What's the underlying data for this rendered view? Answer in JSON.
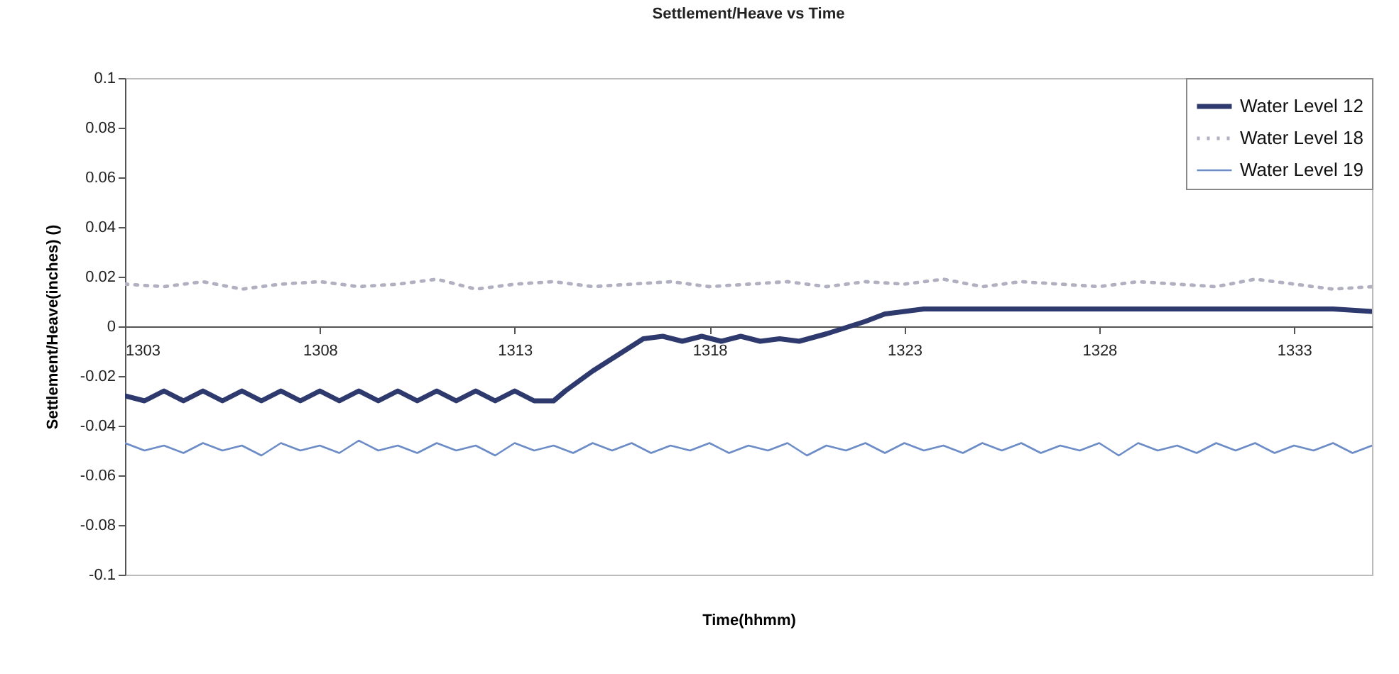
{
  "chart_data": {
    "type": "line",
    "title": "Settlement/Heave vs Time",
    "xlabel": "Time(hhmm)",
    "ylabel": "Settlement/Heave(inches)      ()",
    "xlim": [
      1303,
      1335
    ],
    "xticks": [
      1303,
      1308,
      1313,
      1318,
      1323,
      1328,
      1333
    ],
    "ylim": [
      -0.1,
      0.1
    ],
    "yticks": [
      -0.1,
      -0.08,
      -0.06,
      -0.04,
      -0.02,
      0,
      0.02,
      0.04,
      0.06,
      0.08,
      0.1
    ],
    "grid": false,
    "legend": "top right",
    "marker": "none",
    "series": [
      {
        "name": "Water Level 12",
        "color": "#2e3a6e",
        "line_style": "solid",
        "x": [
          1303,
          1303.5,
          1304,
          1304.5,
          1305,
          1305.5,
          1306,
          1306.5,
          1307,
          1307.5,
          1308,
          1308.5,
          1309,
          1309.5,
          1310,
          1310.5,
          1311,
          1311.5,
          1312,
          1312.5,
          1313,
          1313.5,
          1314,
          1314.3,
          1315,
          1315.6,
          1316.3,
          1316.8,
          1317.3,
          1317.8,
          1318.3,
          1318.8,
          1319.3,
          1319.8,
          1320.3,
          1321,
          1322,
          1322.5,
          1323,
          1323.5,
          1325,
          1328,
          1331,
          1334,
          1335
        ],
        "values": [
          -0.028,
          -0.03,
          -0.026,
          -0.03,
          -0.026,
          -0.03,
          -0.026,
          -0.03,
          -0.026,
          -0.03,
          -0.026,
          -0.03,
          -0.026,
          -0.03,
          -0.026,
          -0.03,
          -0.026,
          -0.03,
          -0.026,
          -0.03,
          -0.026,
          -0.03,
          -0.03,
          -0.026,
          -0.018,
          -0.012,
          -0.005,
          -0.004,
          -0.006,
          -0.004,
          -0.006,
          -0.004,
          -0.006,
          -0.005,
          -0.006,
          -0.003,
          0.002,
          0.005,
          0.006,
          0.007,
          0.007,
          0.007,
          0.007,
          0.007,
          0.006
        ]
      },
      {
        "name": "Water Level 18",
        "color": "#b0b0c0",
        "line_style": "dotted",
        "x": [
          1303,
          1304,
          1305,
          1306,
          1307,
          1308,
          1309,
          1310,
          1311,
          1312,
          1313,
          1314,
          1315,
          1316,
          1317,
          1318,
          1319,
          1320,
          1321,
          1322,
          1323,
          1324,
          1325,
          1326,
          1327,
          1328,
          1329,
          1330,
          1331,
          1332,
          1333,
          1334,
          1335
        ],
        "values": [
          0.017,
          0.016,
          0.018,
          0.015,
          0.017,
          0.018,
          0.016,
          0.017,
          0.019,
          0.015,
          0.017,
          0.018,
          0.016,
          0.017,
          0.018,
          0.016,
          0.017,
          0.018,
          0.016,
          0.018,
          0.017,
          0.019,
          0.016,
          0.018,
          0.017,
          0.016,
          0.018,
          0.017,
          0.016,
          0.019,
          0.017,
          0.015,
          0.016
        ]
      },
      {
        "name": "Water Level 19",
        "color": "#6b8cc7",
        "line_style": "solid",
        "x": [
          1303,
          1303.5,
          1304,
          1304.5,
          1305,
          1305.5,
          1306,
          1306.5,
          1307,
          1307.5,
          1308,
          1308.5,
          1309,
          1309.5,
          1310,
          1310.5,
          1311,
          1311.5,
          1312,
          1312.5,
          1313,
          1313.5,
          1314,
          1314.5,
          1315,
          1315.5,
          1316,
          1316.5,
          1317,
          1317.5,
          1318,
          1318.5,
          1319,
          1319.5,
          1320,
          1320.5,
          1321,
          1321.5,
          1322,
          1322.5,
          1323,
          1323.5,
          1324,
          1324.5,
          1325,
          1325.5,
          1326,
          1326.5,
          1327,
          1327.5,
          1328,
          1328.5,
          1329,
          1329.5,
          1330,
          1330.5,
          1331,
          1331.5,
          1332,
          1332.5,
          1333,
          1333.5,
          1334,
          1334.5,
          1335
        ],
        "values": [
          -0.047,
          -0.05,
          -0.048,
          -0.051,
          -0.047,
          -0.05,
          -0.048,
          -0.052,
          -0.047,
          -0.05,
          -0.048,
          -0.051,
          -0.046,
          -0.05,
          -0.048,
          -0.051,
          -0.047,
          -0.05,
          -0.048,
          -0.052,
          -0.047,
          -0.05,
          -0.048,
          -0.051,
          -0.047,
          -0.05,
          -0.047,
          -0.051,
          -0.048,
          -0.05,
          -0.047,
          -0.051,
          -0.048,
          -0.05,
          -0.047,
          -0.052,
          -0.048,
          -0.05,
          -0.047,
          -0.051,
          -0.047,
          -0.05,
          -0.048,
          -0.051,
          -0.047,
          -0.05,
          -0.047,
          -0.051,
          -0.048,
          -0.05,
          -0.047,
          -0.052,
          -0.047,
          -0.05,
          -0.048,
          -0.051,
          -0.047,
          -0.05,
          -0.047,
          -0.051,
          -0.048,
          -0.05,
          -0.047,
          -0.051,
          -0.048
        ]
      }
    ]
  }
}
